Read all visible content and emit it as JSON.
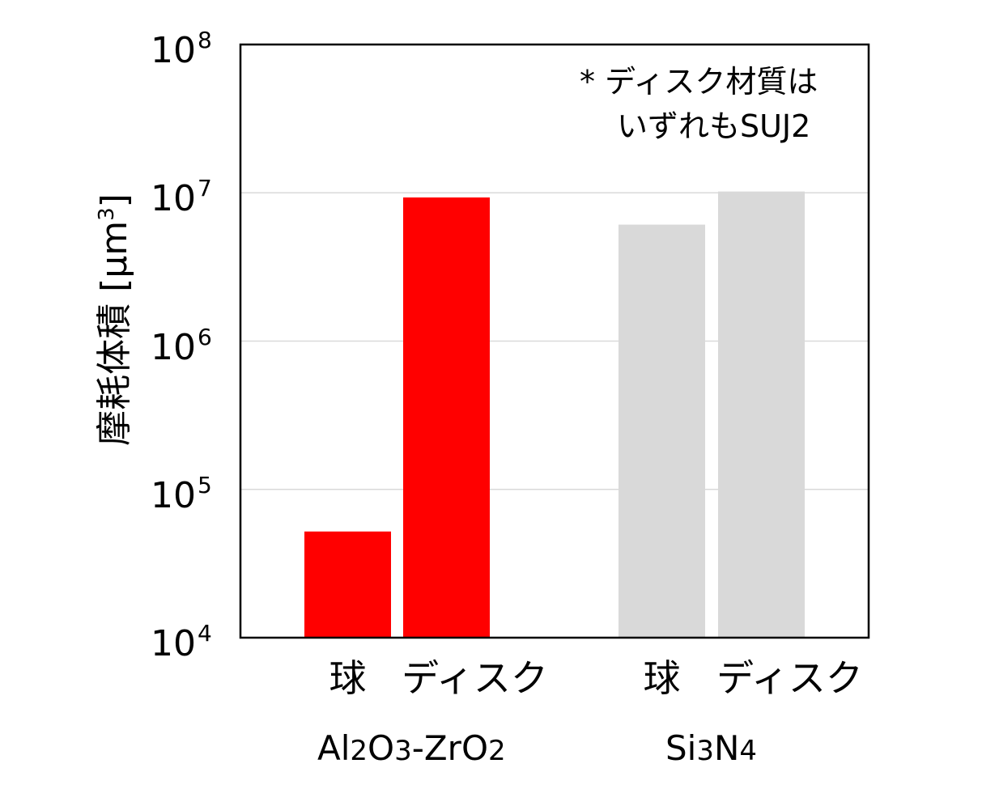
{
  "chart_data": {
    "type": "bar",
    "yscale": "log",
    "ylim": [
      10000,
      100000000
    ],
    "ylabel": "摩耗体積 [μm³]",
    "ylabel_parts": {
      "text": "摩耗体積 [μm",
      "sup": "3",
      "close": "]"
    },
    "yticks": [
      {
        "base": "10",
        "exp": "4"
      },
      {
        "base": "10",
        "exp": "5"
      },
      {
        "base": "10",
        "exp": "6"
      },
      {
        "base": "10",
        "exp": "7"
      },
      {
        "base": "10",
        "exp": "8"
      }
    ],
    "grid": true,
    "groups": [
      {
        "name": "Al2O3-ZrO2",
        "name_parts": [
          "Al",
          "2",
          "O",
          "3",
          "-ZrO",
          "2"
        ],
        "color": "#ff0000",
        "bars": [
          {
            "category": "球",
            "value": 52000
          },
          {
            "category": "ディスク",
            "value": 9300000
          }
        ]
      },
      {
        "name": "Si3N4",
        "name_parts": [
          "Si",
          "3",
          "N",
          "4"
        ],
        "color": "#d9d9d9",
        "bars": [
          {
            "category": "球",
            "value": 6100000
          },
          {
            "category": "ディスク",
            "value": 10200000
          }
        ]
      }
    ],
    "annotation": [
      "* ディスク材質は",
      "いずれもSUJ2"
    ]
  }
}
